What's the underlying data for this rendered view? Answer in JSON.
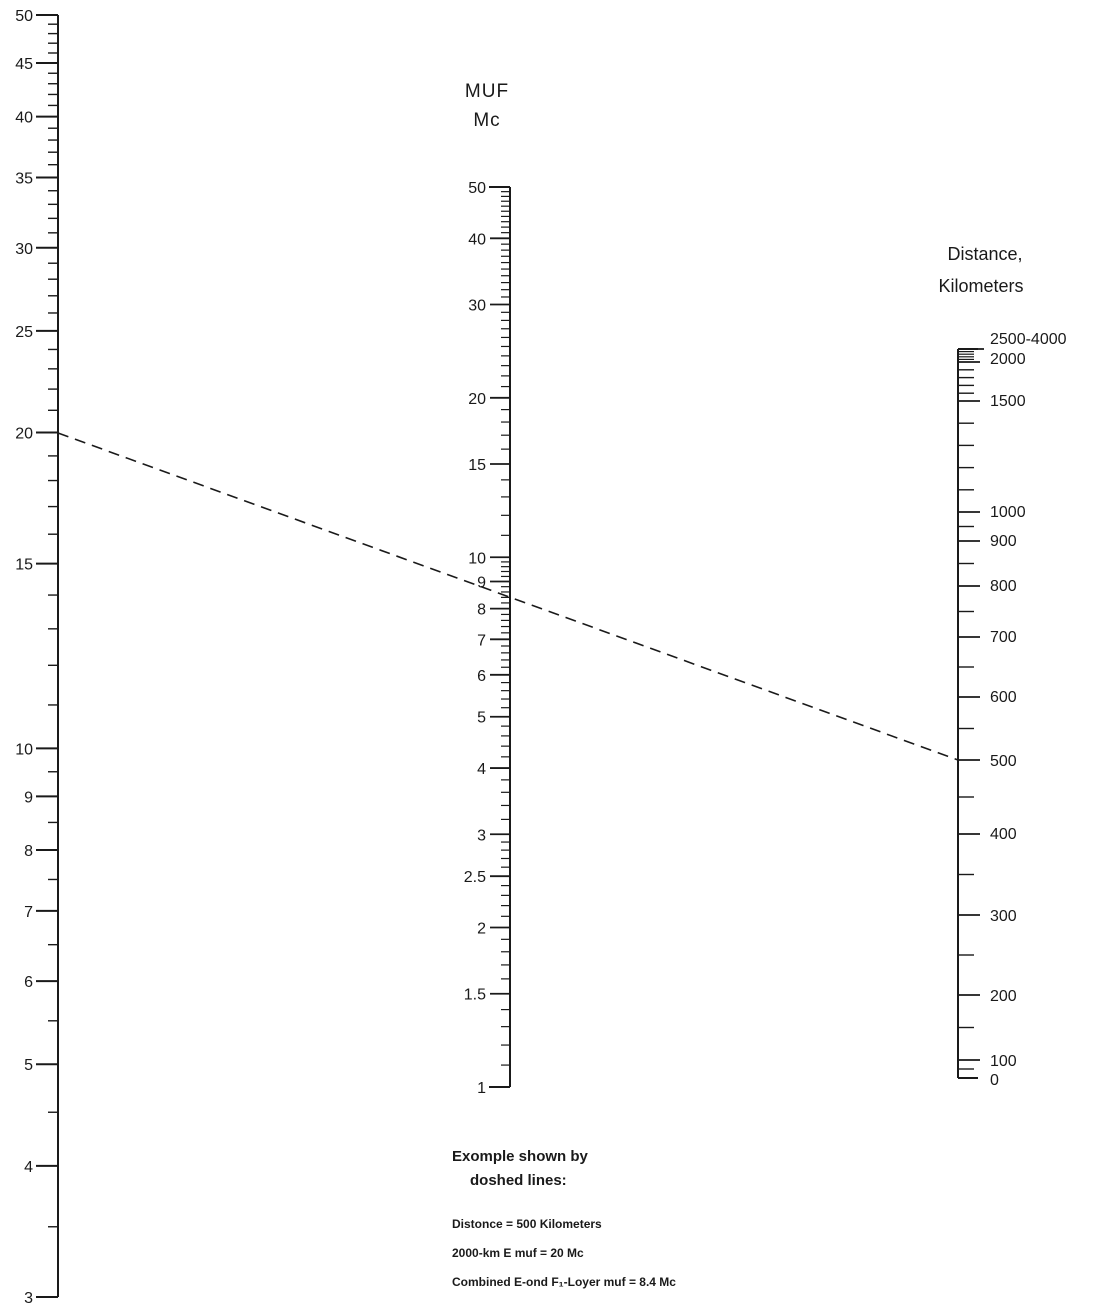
{
  "muf_axis": {
    "title_line1": "MUF",
    "title_line2": "Mc",
    "labels": [
      "50",
      "40",
      "30",
      "20",
      "15",
      "10",
      "9",
      "8",
      "7",
      "6",
      "5",
      "4",
      "3",
      "2.5",
      "2",
      "1.5",
      "1"
    ]
  },
  "distance_axis": {
    "title_line1": "Distance,",
    "title_line2": "Kilometers",
    "labels": [
      "2500-4000",
      "2000",
      "1500",
      "1000",
      "900",
      "800",
      "700",
      "600",
      "500",
      "400",
      "300",
      "200",
      "100",
      "0"
    ]
  },
  "left_axis": {
    "labels": [
      "50",
      "45",
      "40",
      "35",
      "30",
      "25",
      "20",
      "15",
      "10",
      "9",
      "8",
      "7",
      "6",
      "5",
      "4",
      "3"
    ]
  },
  "example": {
    "line1": "Exomple shown by",
    "line2": "doshed lines:",
    "line3": "Distonce = 500 Kilometers",
    "line4": "2000-km E muf = 20 Mc",
    "line5": "Combined E-ond F₁-Loyer muf = 8.4 Mc",
    "distance_km": 500,
    "e_muf_2000km_mc": 20,
    "combined_muf_mc": 8.4
  }
}
